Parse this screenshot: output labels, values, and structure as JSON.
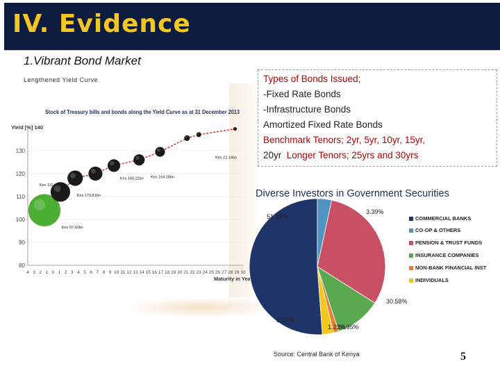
{
  "slide": {
    "title": "IV.  Evidence",
    "subtitle": "1.Vibrant Bond Market",
    "yield_caption": "Lengthened Yield Curve",
    "page_number": "5",
    "source": "Source: Central Bank of Kenya"
  },
  "bond_types": {
    "lines": [
      "Types of Bonds Issued;",
      "-Fixed Rate Bonds",
      "-Infrastructure Bonds",
      "Amortized Fixed Rate Bonds",
      "Benchmark Tenors; 2yr, 5yr, 10yr, 15yr,",
      "20yr",
      "Longer Tenors; 25yrs and 30yrs"
    ]
  },
  "chart_data": [
    {
      "type": "scatter",
      "title": "Stock of Treasury bills and bonds along the Yield Curve as at 31 December 2013",
      "ylabel": "Yield [%] 140",
      "xlabel": "Maturity in Years",
      "ylim": [
        80,
        140
      ],
      "yticks": [
        "130",
        "120",
        "110",
        "100",
        "90",
        "80"
      ],
      "xticks": [
        "4",
        "3",
        "2",
        "1",
        "0",
        "1",
        "2",
        "3",
        "4",
        "5",
        "6",
        "7",
        "8",
        "9",
        "10",
        "11",
        "12",
        "13",
        "14",
        "15",
        "16",
        "17",
        "18",
        "19",
        "20",
        "21",
        "22",
        "23",
        "24",
        "25",
        "26",
        "27",
        "28",
        "29",
        "30"
      ],
      "x": [
        -1.8,
        0.8,
        3.2,
        6.5,
        9.5,
        13.6,
        17,
        21.4,
        23.3,
        29.2
      ],
      "y": [
        104,
        112,
        118,
        120,
        123.5,
        126,
        129.5,
        135.5,
        137,
        139.5
      ],
      "sizes": [
        46,
        28,
        22,
        20,
        18,
        16,
        14,
        8,
        7,
        5
      ],
      "colors": [
        "#4caf32",
        "#1a1a1a",
        "#1a1a1a",
        "#1a1a1a",
        "#1a1a1a",
        "#1a1a1a",
        "#1a1a1a",
        "#1a1a1a",
        "#1a1a1a",
        "#1a1a1a"
      ],
      "trend_color": "#e53935",
      "annotations": [
        {
          "text": "Kes 112.48bn",
          "x": -2.6,
          "y": 114.5
        },
        {
          "text": "Kes 97.62bn",
          "x": 1,
          "y": 96
        },
        {
          "text": "Kes 179.81bn",
          "x": 3.5,
          "y": 110
        },
        {
          "text": "Kes 168.22bn",
          "x": 10.5,
          "y": 117.5
        },
        {
          "text": "Kes 164.18bn",
          "x": 15.5,
          "y": 118
        },
        {
          "text": "Kes 22.14bn",
          "x": 26,
          "y": 126.5
        }
      ]
    },
    {
      "type": "pie",
      "title": "Diverse Investors in Government Securities",
      "categories": [
        "COMMERCIAL BANKS",
        "CO-OP & OTHERS",
        "PENSION & TRUST FUNDS",
        "INSURANCE COMPANIES",
        "NON-BANK FINANCIAL INST",
        "INDIVIDUALS"
      ],
      "values": [
        51.18,
        3.39,
        30.58,
        10.95,
        1.23,
        2.67
      ],
      "colors": [
        "#1f3468",
        "#4f93c1",
        "#c94f64",
        "#5aa951",
        "#ed7d31",
        "#f2c81c"
      ],
      "value_labels": [
        "51.18%",
        "3.39%",
        "30.58%",
        "10.95%",
        "1.23%",
        "2.67%"
      ],
      "legend": "right"
    }
  ]
}
